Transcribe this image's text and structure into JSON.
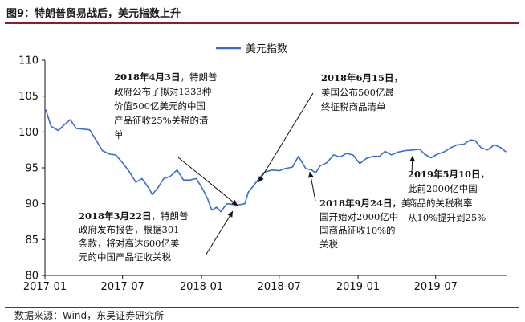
{
  "figure": {
    "title": "图9：特朗普贸易战后，美元指数上升",
    "source": "数据来源：Wind，东吴证券研究所"
  },
  "colors": {
    "line": "#3b6bd6",
    "arrow": "#111111",
    "accent": "#8a1c2b"
  },
  "chart_data": {
    "type": "line",
    "title": "",
    "xlabel": "",
    "ylabel": "",
    "x_ticks": [
      "2017-01",
      "2017-07",
      "2018-01",
      "2018-07",
      "2019-01",
      "2019-07"
    ],
    "y_ticks": [
      80,
      85,
      90,
      95,
      100,
      105,
      110
    ],
    "ylim": [
      80,
      110
    ],
    "xlim": [
      "2017-01-01",
      "2019-12-15"
    ],
    "grid": false,
    "legend": {
      "position": "top-center",
      "entries": [
        "美元指数"
      ]
    },
    "series": [
      {
        "name": "美元指数",
        "x": [
          "2017-01-03",
          "2017-01-15",
          "2017-02-01",
          "2017-02-15",
          "2017-03-01",
          "2017-03-15",
          "2017-04-01",
          "2017-04-15",
          "2017-05-01",
          "2017-05-15",
          "2017-06-01",
          "2017-06-15",
          "2017-07-01",
          "2017-07-15",
          "2017-08-01",
          "2017-08-15",
          "2017-09-01",
          "2017-09-08",
          "2017-09-20",
          "2017-10-05",
          "2017-10-20",
          "2017-11-05",
          "2017-11-20",
          "2017-12-05",
          "2017-12-20",
          "2018-01-05",
          "2018-01-15",
          "2018-01-25",
          "2018-02-05",
          "2018-02-15",
          "2018-03-01",
          "2018-03-15",
          "2018-03-22",
          "2018-04-03",
          "2018-04-12",
          "2018-04-20",
          "2018-05-01",
          "2018-05-15",
          "2018-05-28",
          "2018-06-15",
          "2018-07-01",
          "2018-07-15",
          "2018-08-01",
          "2018-08-15",
          "2018-09-01",
          "2018-09-15",
          "2018-09-24",
          "2018-10-05",
          "2018-10-20",
          "2018-11-05",
          "2018-11-20",
          "2018-12-05",
          "2018-12-20",
          "2019-01-05",
          "2019-01-20",
          "2019-02-05",
          "2019-02-20",
          "2019-03-05",
          "2019-03-20",
          "2019-04-05",
          "2019-04-20",
          "2019-05-10",
          "2019-05-25",
          "2019-06-05",
          "2019-06-20",
          "2019-07-05",
          "2019-07-20",
          "2019-08-05",
          "2019-08-20",
          "2019-09-05",
          "2019-09-20",
          "2019-10-01",
          "2019-10-15",
          "2019-10-30",
          "2019-11-15",
          "2019-11-30",
          "2019-12-12"
        ],
        "values": [
          103.1,
          100.8,
          100.2,
          101.0,
          101.7,
          100.5,
          100.4,
          100.3,
          98.8,
          97.4,
          96.9,
          96.8,
          95.7,
          94.6,
          93.0,
          93.5,
          92.1,
          91.3,
          92.1,
          93.5,
          93.8,
          94.7,
          93.3,
          93.3,
          93.5,
          91.9,
          90.7,
          89.1,
          89.5,
          88.9,
          90.0,
          89.9,
          89.8,
          89.9,
          90.0,
          91.6,
          92.4,
          93.5,
          94.4,
          94.7,
          94.6,
          94.9,
          95.1,
          96.6,
          94.9,
          94.7,
          94.3,
          95.3,
          95.7,
          96.8,
          96.5,
          97.0,
          96.8,
          95.6,
          96.3,
          96.6,
          96.6,
          97.3,
          96.8,
          97.2,
          97.4,
          97.5,
          97.6,
          96.9,
          96.4,
          96.9,
          97.2,
          97.8,
          98.2,
          98.3,
          98.9,
          98.8,
          97.8,
          97.5,
          98.2,
          97.8,
          97.2
        ]
      }
    ],
    "annotations": [
      {
        "id": "apr2018",
        "date": "2018-04-03",
        "bold": "2018年4月3日",
        "lines": [
          "2018年4月3日，特朗普",
          "政府公布了拟对1333种",
          "价值500亿美元的中国",
          "产品征收25%关税的清",
          "单"
        ]
      },
      {
        "id": "jun2018",
        "date": "2018-06-15",
        "bold": "2018年6月15日",
        "lines": [
          "2018年6月15日，",
          "美国公布500亿最",
          "终征税商品清单"
        ]
      },
      {
        "id": "mar2018",
        "date": "2018-03-22",
        "bold": "2018年3月22日",
        "lines": [
          "2018年3月22日，特朗普",
          "政府发布报告，根据301",
          "条款，将对高达600亿美",
          "元的中国产品征收关税"
        ]
      },
      {
        "id": "sep2018",
        "date": "2018-09-24",
        "bold": "2018年9月24日",
        "lines": [
          "2018年9月24日，美",
          "国开始对2000亿中",
          "国商品征收10%的",
          "关税"
        ]
      },
      {
        "id": "may2019",
        "date": "2019-05-10",
        "bold": "2019年5月10日",
        "lines": [
          "2019年5月10日，",
          "此前2000亿中国",
          "商品的关税税率",
          "从10%提升到25%"
        ]
      }
    ]
  }
}
